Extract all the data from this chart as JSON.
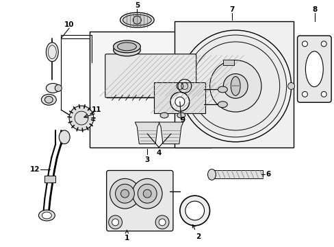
{
  "bg_color": "#ffffff",
  "lc": "#000000",
  "gray_fill": "#e8e8e8",
  "light_gray": "#f0f0f0",
  "figsize": [
    4.89,
    3.6
  ],
  "dpi": 100,
  "xlim": [
    0,
    489
  ],
  "ylim": [
    0,
    360
  ]
}
